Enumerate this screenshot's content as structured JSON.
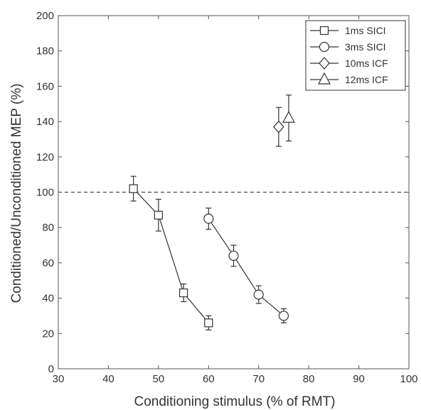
{
  "chart_data": {
    "type": "scatter",
    "xlabel": "Conditioning stimulus (% of RMT)",
    "ylabel": "Conditioned/Unconditioned MEP (%)",
    "xlim": [
      30,
      100
    ],
    "ylim": [
      0,
      200
    ],
    "xticks": [
      30,
      40,
      50,
      60,
      70,
      80,
      90,
      100
    ],
    "yticks": [
      0,
      20,
      40,
      60,
      80,
      100,
      120,
      140,
      160,
      180,
      200
    ],
    "grid": false,
    "legend_position": "top-right",
    "reference_line": {
      "y": 100,
      "style": "dashed"
    },
    "series": [
      {
        "name": "1ms SICI",
        "marker": "square",
        "x": [
          45,
          50,
          55,
          60
        ],
        "y": [
          102,
          87,
          43,
          26
        ],
        "err": [
          7,
          9,
          5,
          4
        ]
      },
      {
        "name": "3ms SICI",
        "marker": "circle",
        "x": [
          60,
          65,
          70,
          75
        ],
        "y": [
          85,
          64,
          42,
          30
        ],
        "err": [
          6,
          6,
          5,
          4
        ]
      },
      {
        "name": "10ms ICF",
        "marker": "diamond",
        "x": [
          74
        ],
        "y": [
          137
        ],
        "err": [
          11
        ]
      },
      {
        "name": "12ms ICF",
        "marker": "triangle",
        "x": [
          76
        ],
        "y": [
          142
        ],
        "err": [
          13
        ]
      }
    ]
  }
}
